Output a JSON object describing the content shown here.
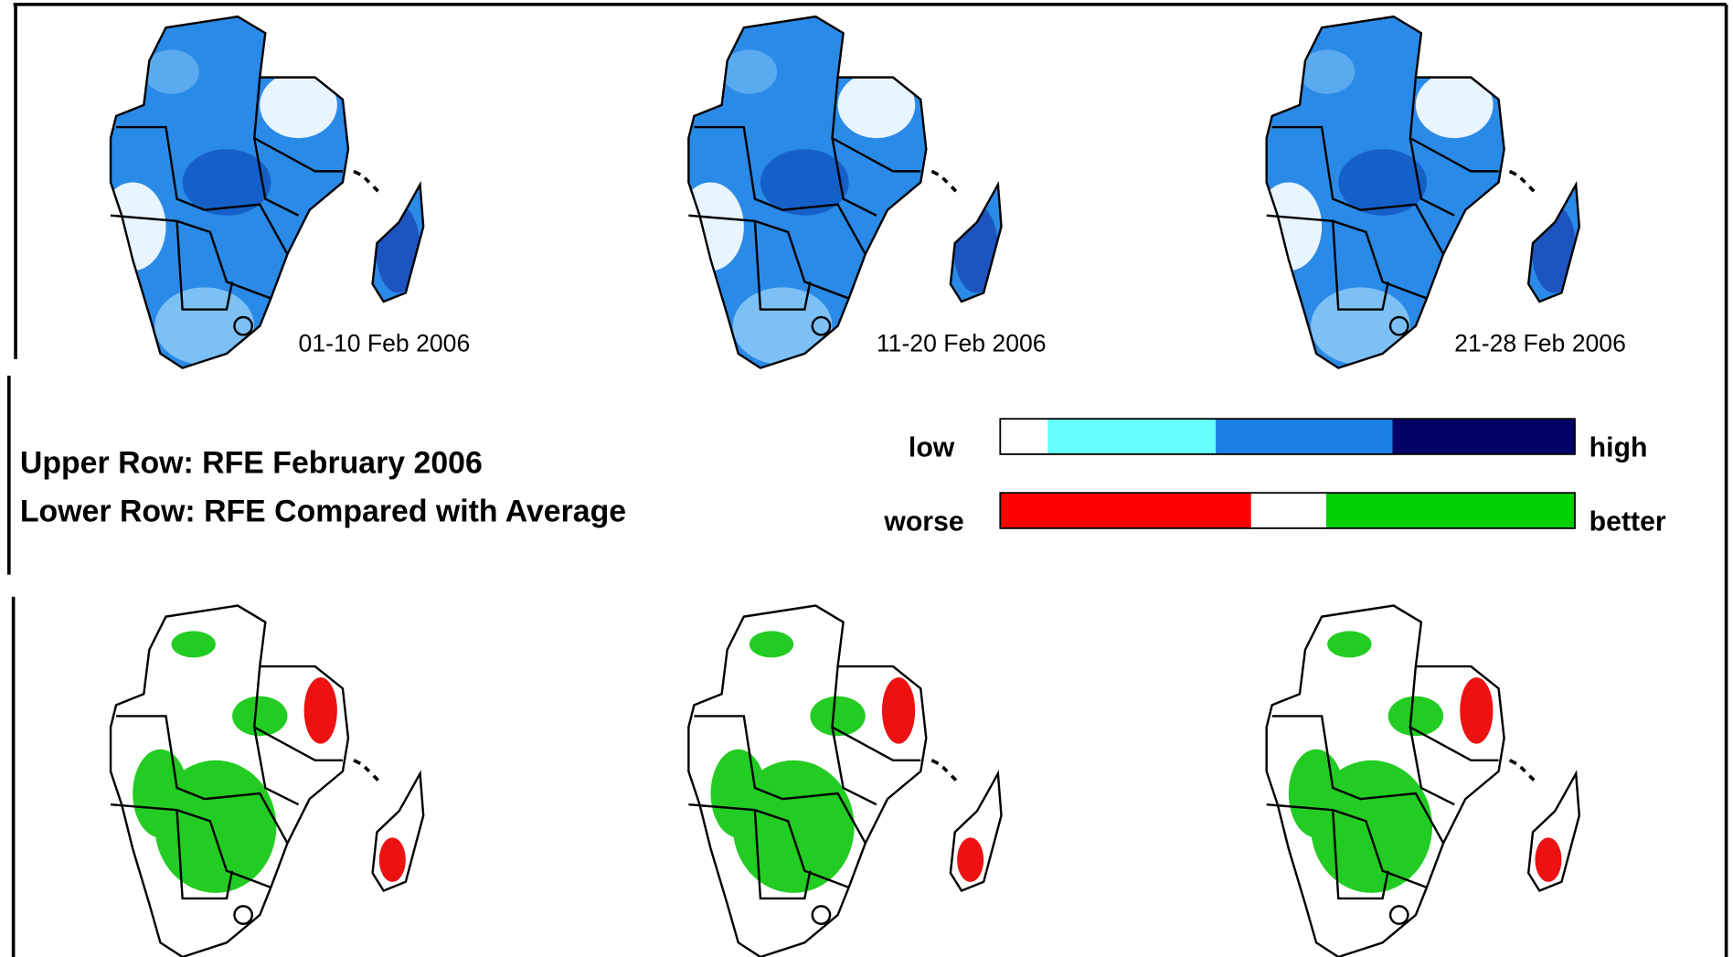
{
  "maps": [
    {
      "label": "01-10 Feb 2006"
    },
    {
      "label": "11-20 Feb 2006"
    },
    {
      "label": "21-28 Feb 2006"
    }
  ],
  "description": [
    "Upper Row: RFE February 2006",
    "Lower Row: RFE Compared with Average"
  ],
  "legend": {
    "rainfall": {
      "low": "low",
      "high": "high"
    },
    "anomaly": {
      "worse": "worse",
      "better": "better"
    }
  }
}
